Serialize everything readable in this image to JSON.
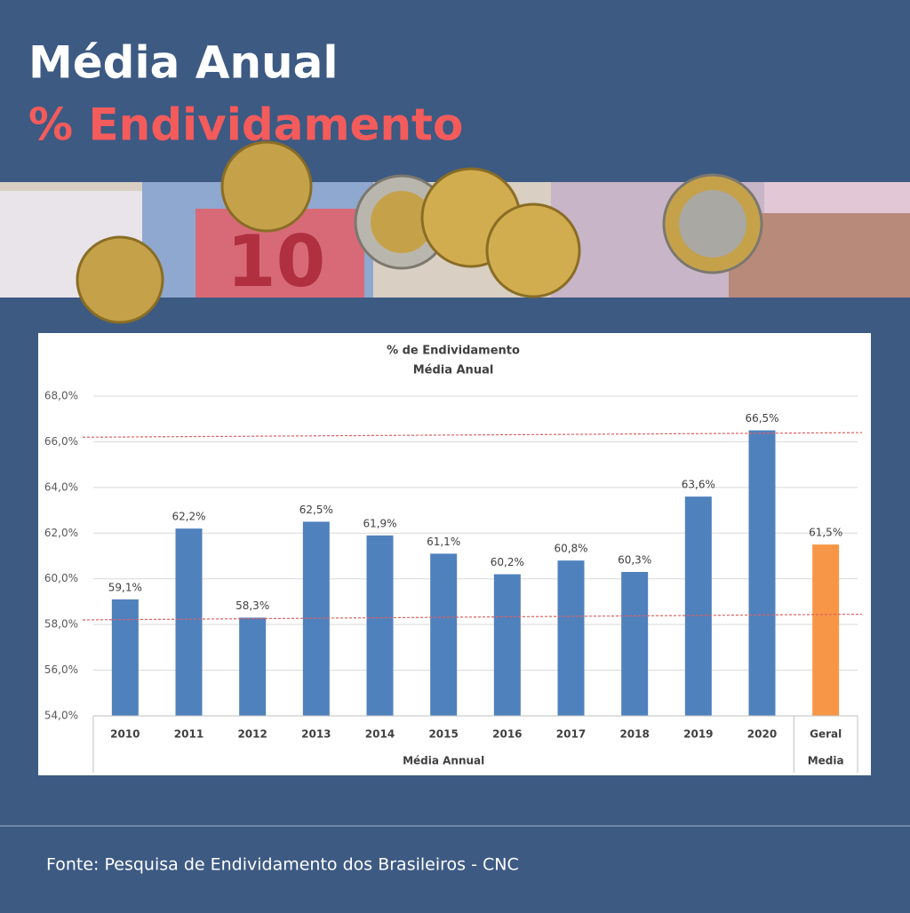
{
  "header": {
    "title": "Média Anual",
    "subtitle": "% Endividamento"
  },
  "footer": {
    "source": "Fonte: Pesquisa de Endividamento dos Brasileiros - CNC"
  },
  "chart_data": {
    "type": "bar",
    "title": "% de Endividamento",
    "subtitle": "Média Anual",
    "categories": [
      "2010",
      "2011",
      "2012",
      "2013",
      "2014",
      "2015",
      "2016",
      "2017",
      "2018",
      "2019",
      "2020",
      "Geral"
    ],
    "category_groups": [
      {
        "label": "Média Annual",
        "size": 11
      },
      {
        "label": "Media",
        "size": 1
      }
    ],
    "values": [
      59.1,
      62.2,
      58.3,
      62.5,
      61.9,
      61.1,
      60.2,
      60.8,
      60.3,
      63.6,
      66.5,
      61.5
    ],
    "value_labels": [
      "59,1%",
      "62,2%",
      "58,3%",
      "62,5%",
      "61,9%",
      "61,1%",
      "60,2%",
      "60,8%",
      "60,3%",
      "63,6%",
      "66,5%",
      "61,5%"
    ],
    "colors": [
      "#4f81bd",
      "#4f81bd",
      "#4f81bd",
      "#4f81bd",
      "#4f81bd",
      "#4f81bd",
      "#4f81bd",
      "#4f81bd",
      "#4f81bd",
      "#4f81bd",
      "#4f81bd",
      "#f79646"
    ],
    "ylim": [
      54,
      68
    ],
    "yticks": [
      {
        "value": 54,
        "label": "54,0%"
      },
      {
        "value": 56,
        "label": "56,0%"
      },
      {
        "value": 58,
        "label": "58,0%"
      },
      {
        "value": 60,
        "label": "60,0%"
      },
      {
        "value": 62,
        "label": "62,0%"
      },
      {
        "value": 64,
        "label": "64,0%"
      },
      {
        "value": 66,
        "label": "66,0%"
      },
      {
        "value": 68,
        "label": "68,0%"
      }
    ],
    "grid": true,
    "reference_lines": [
      {
        "from": 66.2,
        "to": 66.4,
        "color": "#e06060"
      },
      {
        "from": 58.2,
        "to": 58.45,
        "color": "#e06060"
      }
    ]
  }
}
